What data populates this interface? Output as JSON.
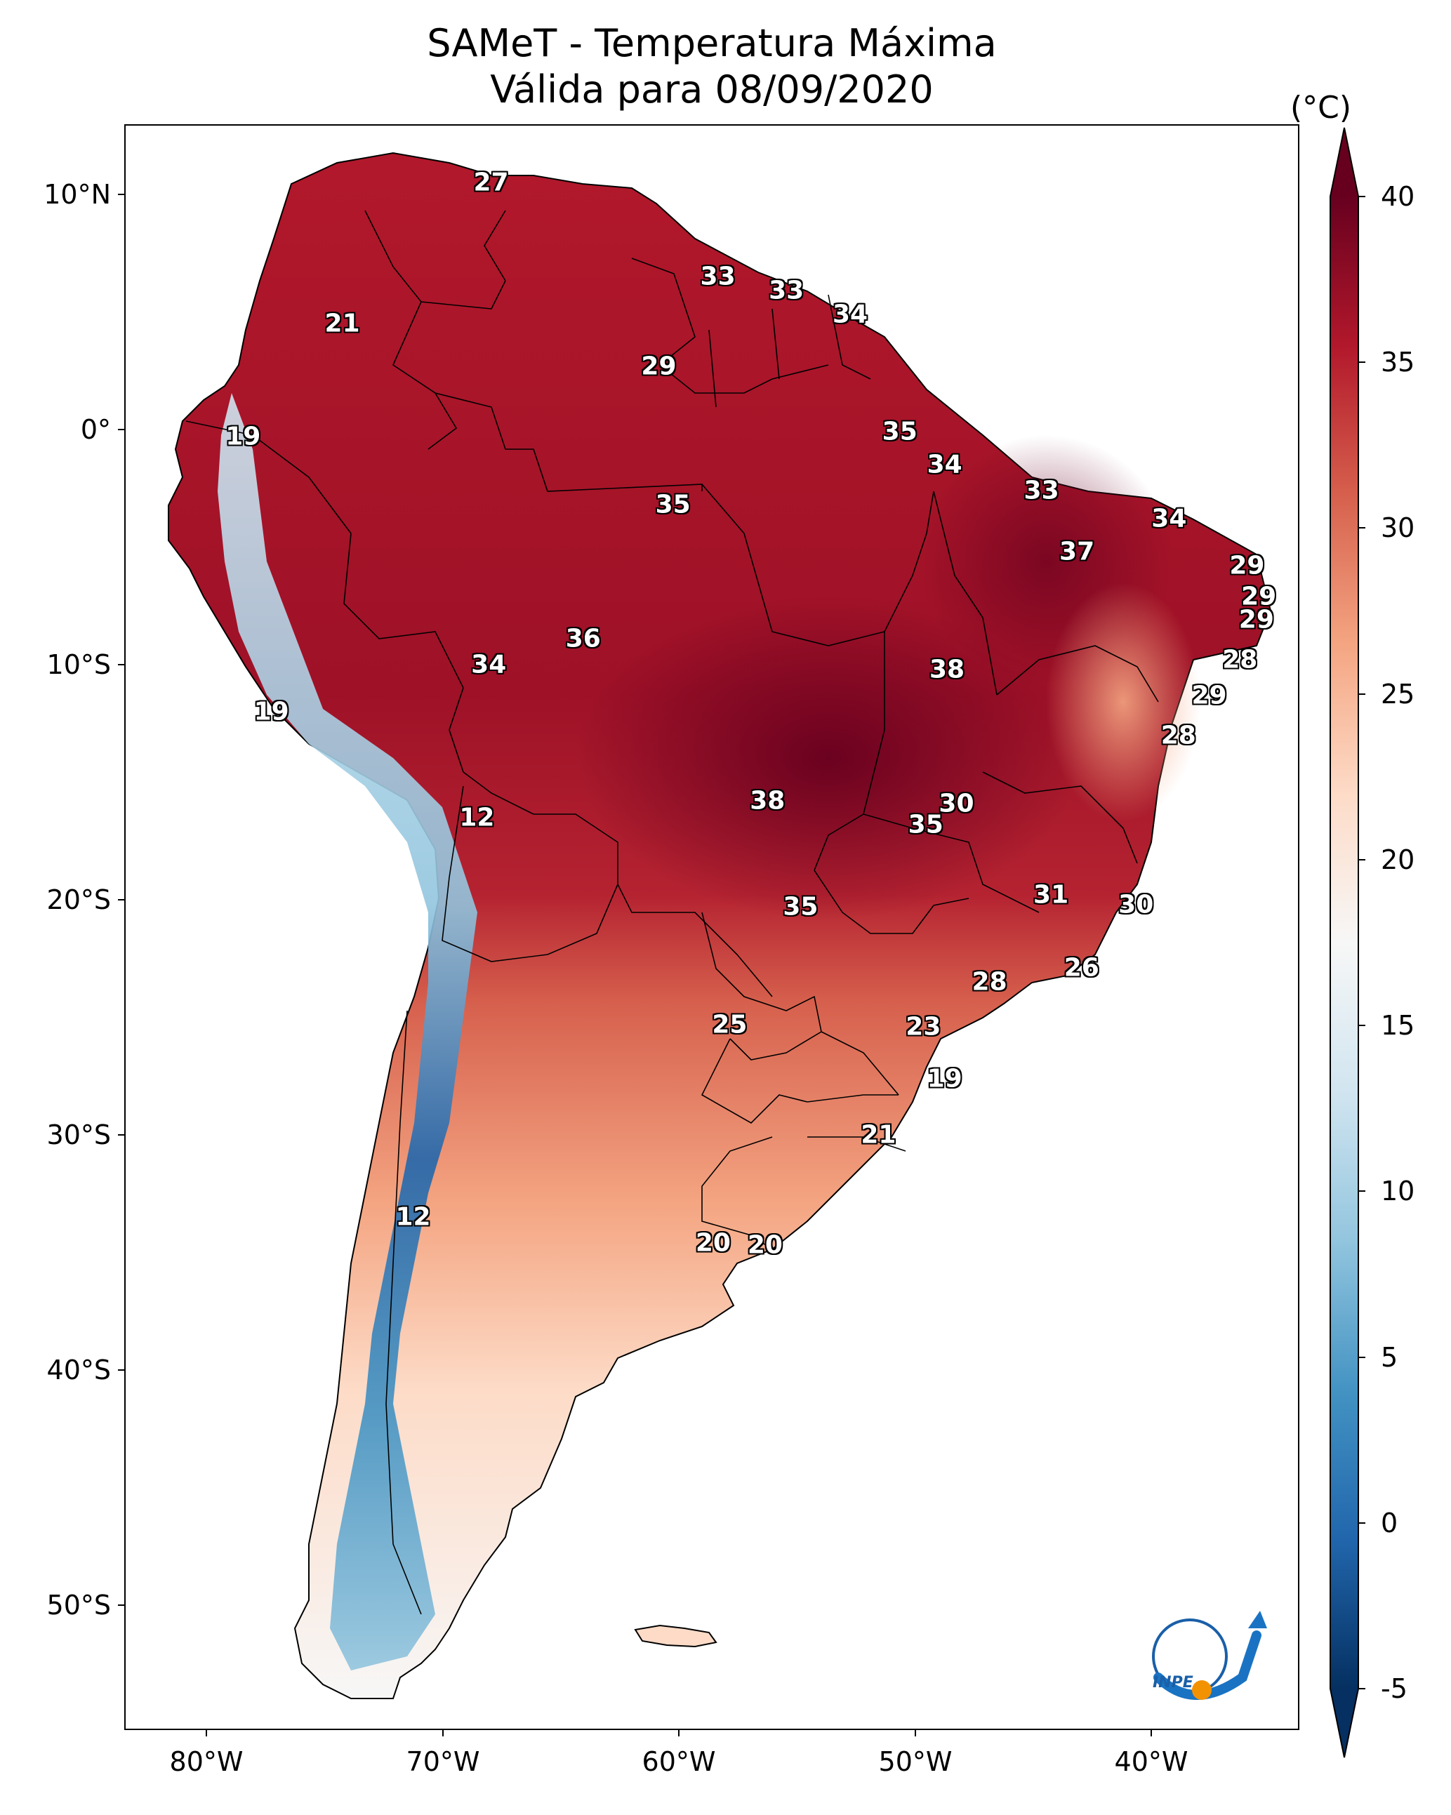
{
  "title": {
    "line1": "SAMeT - Temperatura Máxima",
    "line2": "Válida para 08/09/2020"
  },
  "axes": {
    "lat_ticks": [
      "10°N",
      "0°",
      "10°S",
      "20°S",
      "30°S",
      "40°S",
      "50°S"
    ],
    "lon_ticks": [
      "80°W",
      "70°W",
      "60°W",
      "50°W",
      "40°W"
    ]
  },
  "colorbar": {
    "unit": "(°C)",
    "ticks": [
      "40",
      "35",
      "30",
      "25",
      "20",
      "15",
      "10",
      "5",
      "0",
      "-5"
    ],
    "colors": [
      "#053061",
      "#2166ac",
      "#4393c3",
      "#92c5de",
      "#d1e5f0",
      "#f7f7f7",
      "#fddbc7",
      "#f4a582",
      "#d6604d",
      "#b2182b",
      "#67001f"
    ],
    "range": [
      -5,
      40
    ]
  },
  "station_labels": [
    {
      "value": "27",
      "lon": -67.5,
      "lat": 10.5
    },
    {
      "value": "33",
      "lon": -57.9,
      "lat": 6.5
    },
    {
      "value": "33",
      "lon": -55.0,
      "lat": 5.9
    },
    {
      "value": "34",
      "lon": -52.3,
      "lat": 4.9
    },
    {
      "value": "21",
      "lon": -73.8,
      "lat": 4.5
    },
    {
      "value": "29",
      "lon": -60.4,
      "lat": 2.7
    },
    {
      "value": "19",
      "lon": -78.0,
      "lat": -0.3
    },
    {
      "value": "35",
      "lon": -50.2,
      "lat": -0.1
    },
    {
      "value": "34",
      "lon": -48.3,
      "lat": -1.5
    },
    {
      "value": "33",
      "lon": -44.2,
      "lat": -2.6
    },
    {
      "value": "35",
      "lon": -59.8,
      "lat": -3.2
    },
    {
      "value": "34",
      "lon": -38.8,
      "lat": -3.8
    },
    {
      "value": "37",
      "lon": -42.7,
      "lat": -5.2
    },
    {
      "value": "29",
      "lon": -35.5,
      "lat": -5.8
    },
    {
      "value": "29",
      "lon": -35.0,
      "lat": -7.1
    },
    {
      "value": "29",
      "lon": -35.1,
      "lat": -8.1
    },
    {
      "value": "36",
      "lon": -63.6,
      "lat": -8.9
    },
    {
      "value": "28",
      "lon": -35.8,
      "lat": -9.8
    },
    {
      "value": "34",
      "lon": -67.6,
      "lat": -10.0
    },
    {
      "value": "38",
      "lon": -48.2,
      "lat": -10.2
    },
    {
      "value": "29",
      "lon": -37.1,
      "lat": -11.3
    },
    {
      "value": "19",
      "lon": -76.8,
      "lat": -12.0
    },
    {
      "value": "28",
      "lon": -38.4,
      "lat": -13.0
    },
    {
      "value": "38",
      "lon": -55.8,
      "lat": -15.8
    },
    {
      "value": "30",
      "lon": -47.8,
      "lat": -15.9
    },
    {
      "value": "12",
      "lon": -68.1,
      "lat": -16.5
    },
    {
      "value": "35",
      "lon": -49.1,
      "lat": -16.8
    },
    {
      "value": "31",
      "lon": -43.8,
      "lat": -19.8
    },
    {
      "value": "30",
      "lon": -40.2,
      "lat": -20.2
    },
    {
      "value": "35",
      "lon": -54.4,
      "lat": -20.3
    },
    {
      "value": "26",
      "lon": -42.5,
      "lat": -22.9
    },
    {
      "value": "28",
      "lon": -46.4,
      "lat": -23.5
    },
    {
      "value": "25",
      "lon": -57.4,
      "lat": -25.3
    },
    {
      "value": "23",
      "lon": -49.2,
      "lat": -25.4
    },
    {
      "value": "19",
      "lon": -48.3,
      "lat": -27.6
    },
    {
      "value": "21",
      "lon": -51.1,
      "lat": -30.0
    },
    {
      "value": "12",
      "lon": -70.8,
      "lat": -33.5
    },
    {
      "value": "20",
      "lon": -58.1,
      "lat": -34.6
    },
    {
      "value": "20",
      "lon": -55.9,
      "lat": -34.7
    }
  ],
  "logo": {
    "text": "INPE"
  }
}
